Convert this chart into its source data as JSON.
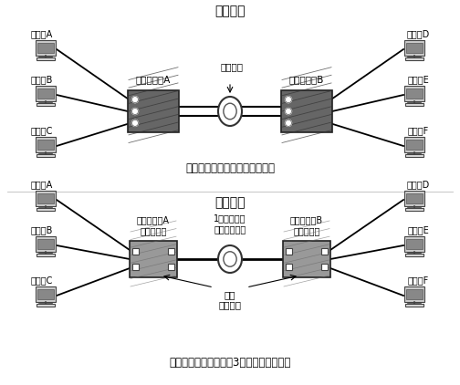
{
  "bg_color": "#ffffff",
  "title1": "电路交换",
  "title2": "分组交换",
  "caption1": "最多只能有两个用户同时通信。",
  "caption2": "通过线路共享，可以让3个用户同时通信。",
  "left_computers_top": [
    "计算机A",
    "计算机B",
    "计算机C"
  ],
  "right_computers_top": [
    "计算机D",
    "计算机E",
    "计算机F"
  ],
  "left_computers_bot": [
    "计算机A",
    "计算机B",
    "计算机C"
  ],
  "right_computers_bot": [
    "计算机D",
    "计算机E",
    "计算机F"
  ],
  "switch_label_top_left": "电路交换机A",
  "switch_label_top_right": "电路交换机B",
  "switch_label_bot_left": "分组交换机A\n（路由器）",
  "switch_label_bot_right": "分组交换机B\n（路由器）",
  "middle_label_top": "两条电路",
  "middle_label_bot": "1条通信线路\n（线路共享）",
  "buffer_label": "缓存\n（队列）",
  "text_color": "#000000",
  "switch_dark_color": "#666666",
  "switch_light_color": "#999999",
  "switch_edge_color": "#222222",
  "line_color": "#000000",
  "computer_body_color": "#cccccc",
  "computer_screen_color": "#888888",
  "computer_keyboard_color": "#dddddd"
}
